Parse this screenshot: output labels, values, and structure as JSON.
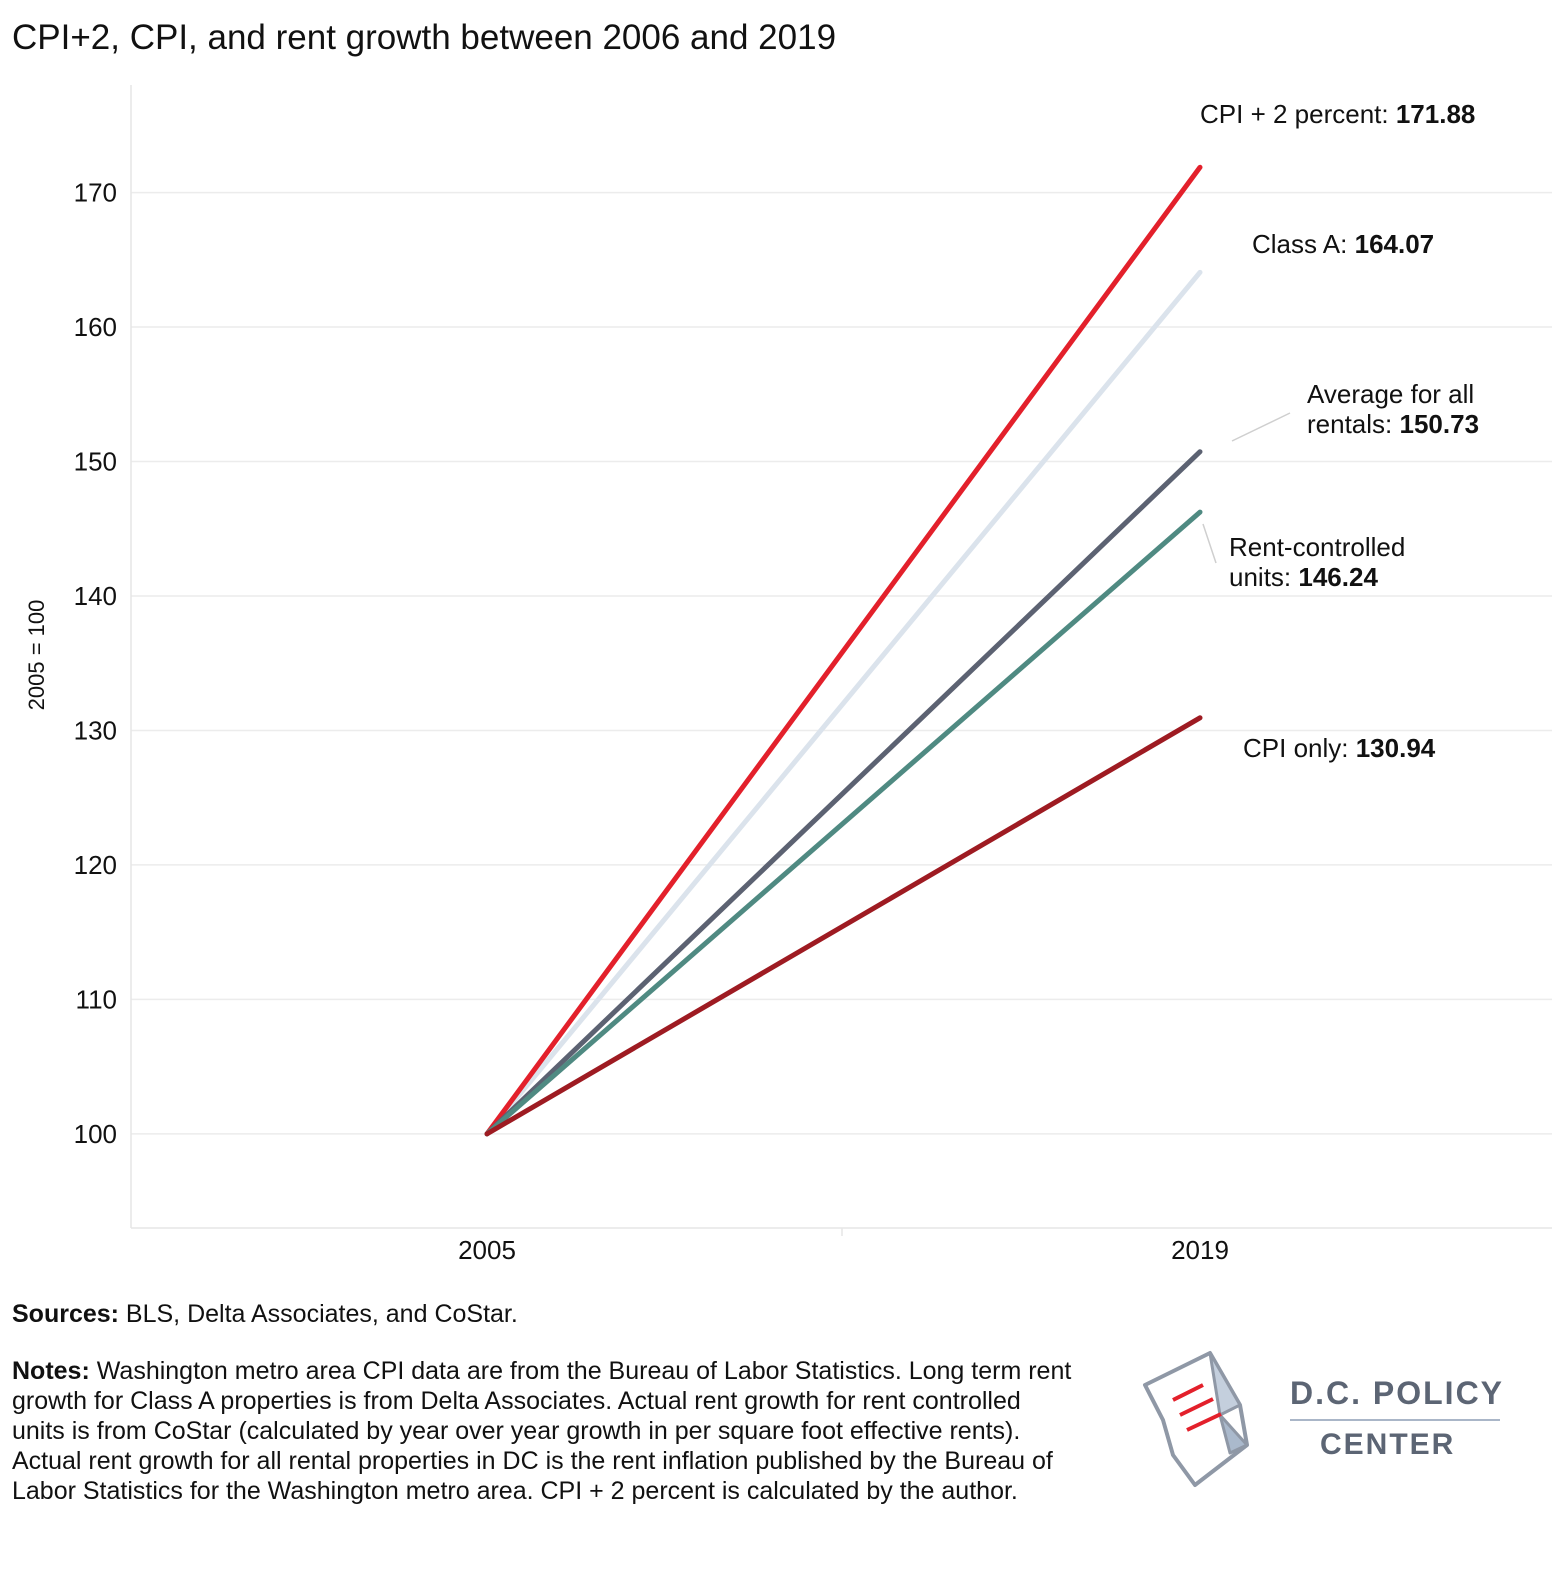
{
  "title": "CPI+2, CPI, and rent growth between 2006 and 2019",
  "chart_data": {
    "type": "line",
    "x": [
      "2005",
      "2019"
    ],
    "ylabel": "2005 = 100",
    "xlabel": "",
    "ylim": [
      93,
      178
    ],
    "yticks": [
      100,
      110,
      120,
      130,
      140,
      150,
      160,
      170
    ],
    "grid": true,
    "series": [
      {
        "key": "cpi2",
        "name": "CPI + 2 percent",
        "values": [
          100,
          171.88
        ],
        "value_label": "171.88",
        "color": "#e3202b"
      },
      {
        "key": "classa",
        "name": "Class A",
        "values": [
          100,
          164.07
        ],
        "value_label": "164.07",
        "color": "#dbe3ec"
      },
      {
        "key": "avg",
        "name": "Average for all rentals",
        "name_line1": "Average for all",
        "name_line2": "rentals",
        "values": [
          100,
          150.73
        ],
        "value_label": "150.73",
        "color": "#5c6272"
      },
      {
        "key": "rc",
        "name": "Rent-controlled units",
        "name_line1": "Rent-controlled",
        "name_line2": "units",
        "values": [
          100,
          146.24
        ],
        "value_label": "146.24",
        "color": "#4f8a82"
      },
      {
        "key": "cpi",
        "name": "CPI only",
        "values": [
          100,
          130.94
        ],
        "value_label": "130.94",
        "color": "#9e1b22"
      }
    ]
  },
  "sources": {
    "label": "Sources:",
    "text": " BLS, Delta Associates, and CoStar."
  },
  "notes": {
    "label": "Notes:",
    "text": " Washington metro area CPI data are from the Bureau of Labor Statistics. Long term rent growth for Class A properties is from Delta Associates. Actual rent growth for rent controlled units is from CoStar (calculated by year over year growth in per square foot effective rents). Actual rent growth for all rental properties in DC is the rent inflation published by the Bureau of Labor Statistics for the Washington metro area. CPI + 2 percent is calculated by the author."
  },
  "logo": {
    "line1": "D.C. POLICY",
    "line2": "CENTER",
    "icon": "dc-map-document-icon"
  }
}
